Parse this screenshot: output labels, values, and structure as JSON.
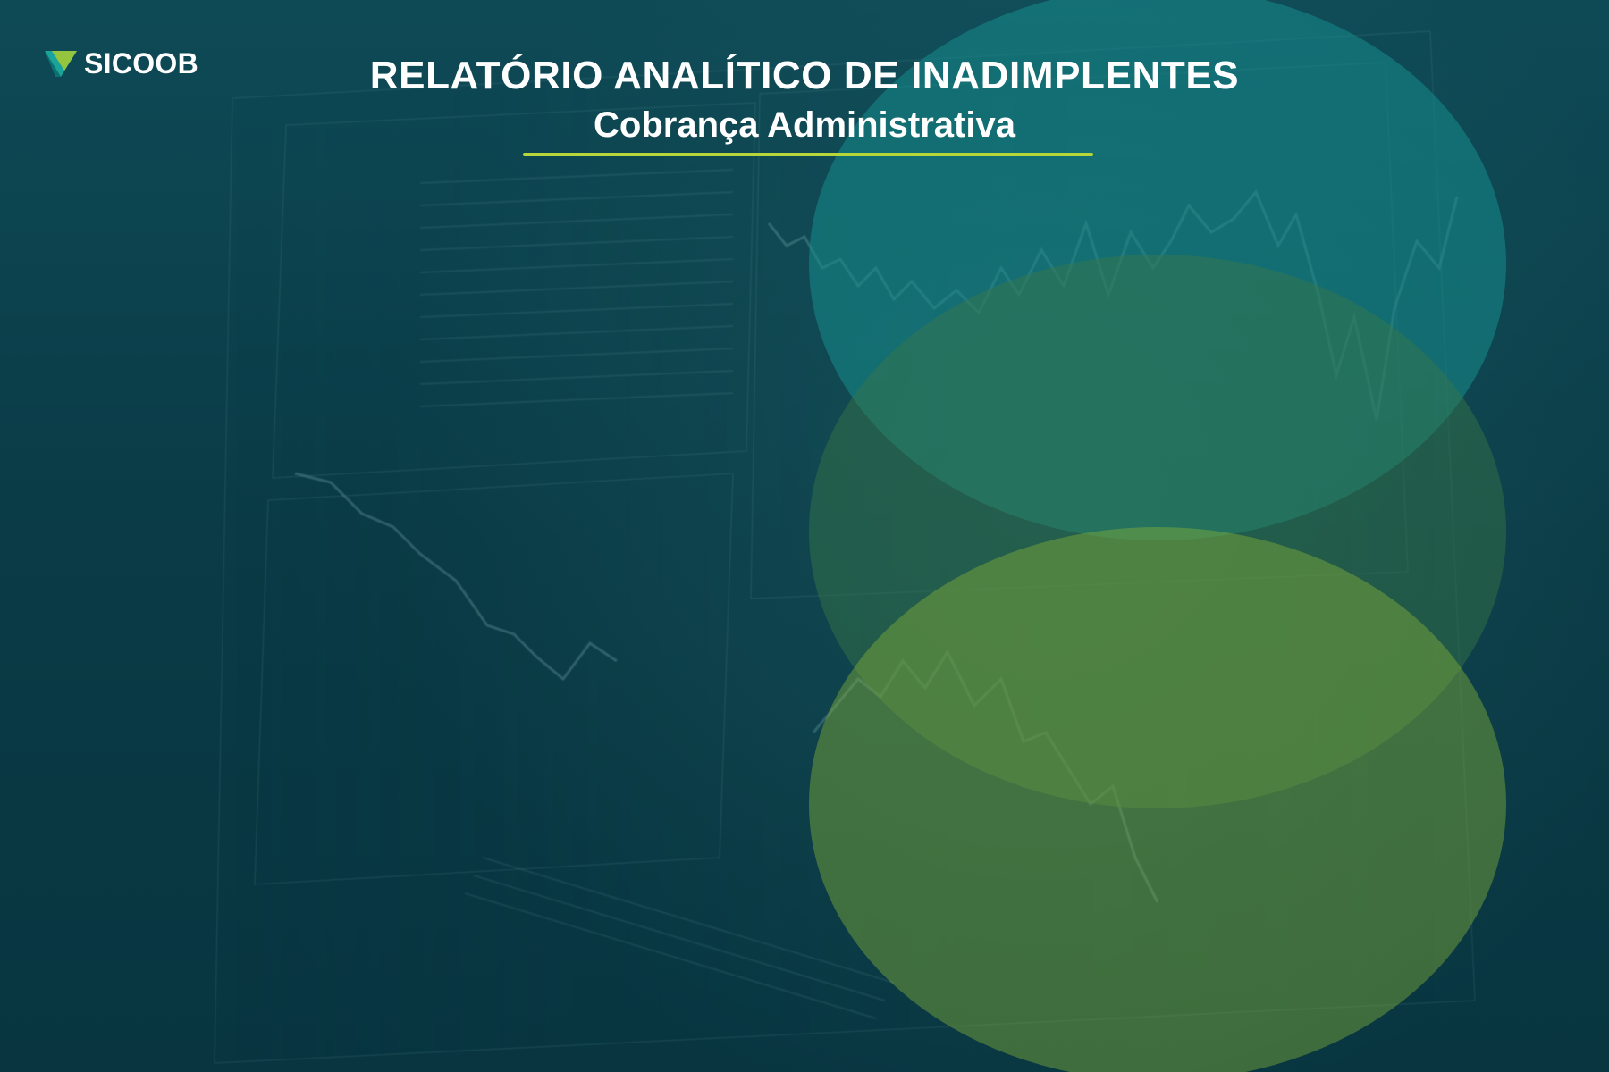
{
  "brand": {
    "name": "SICOOB",
    "logo_icon": "sicoob-triangle-icon",
    "colors": {
      "background": "#0b3e48",
      "accent_lime": "#b7d63b",
      "circle_teal": "#168c8c",
      "circle_green": "#3a7846",
      "circle_lime": "#82af37"
    }
  },
  "header": {
    "title": "RELATÓRIO ANALÍTICO DE INADIMPLENTES",
    "subtitle": "Cobrança Administrativa"
  }
}
